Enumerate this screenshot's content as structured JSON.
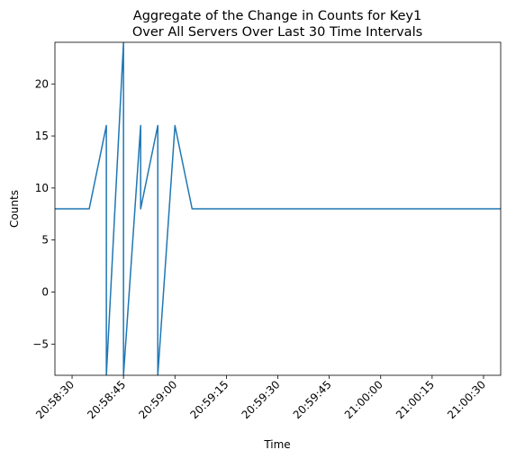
{
  "chart_data": {
    "type": "line",
    "title_lines": [
      "Aggregate of the Change in Counts for Key1",
      "Over All Servers Over Last 30 Time Intervals"
    ],
    "xlabel": "Time",
    "ylabel": "Counts",
    "x_axis_type": "time",
    "xlim": [
      "20:58:25",
      "21:00:35"
    ],
    "ylim": [
      -8,
      24
    ],
    "grid": false,
    "line_color": "#1f77b4",
    "x_ticks": [
      {
        "t": "20:58:30",
        "label": "20:58:30"
      },
      {
        "t": "20:58:45",
        "label": "20:58:45"
      },
      {
        "t": "20:59:00",
        "label": "20:59:00"
      },
      {
        "t": "20:59:15",
        "label": "20:59:15"
      },
      {
        "t": "20:59:30",
        "label": "20:59:30"
      },
      {
        "t": "20:59:45",
        "label": "20:59:45"
      },
      {
        "t": "21:00:00",
        "label": "21:00:00"
      },
      {
        "t": "21:00:15",
        "label": "21:00:15"
      },
      {
        "t": "21:00:30",
        "label": "21:00:30"
      }
    ],
    "y_ticks": [
      {
        "v": -5,
        "label": "−5"
      },
      {
        "v": 0,
        "label": "0"
      },
      {
        "v": 5,
        "label": "5"
      },
      {
        "v": 10,
        "label": "10"
      },
      {
        "v": 15,
        "label": "15"
      },
      {
        "v": 20,
        "label": "20"
      }
    ],
    "series": [
      {
        "x": [
          "20:58:25",
          "20:58:35",
          "20:58:40",
          "20:58:40",
          "20:58:45",
          "20:58:45",
          "20:58:50",
          "20:58:50",
          "20:58:55",
          "20:58:55",
          "20:59:00",
          "20:59:05",
          "21:00:35"
        ],
        "y": [
          8,
          8,
          16,
          -8,
          24,
          -8,
          16,
          8,
          16,
          -8,
          16,
          8,
          8
        ]
      }
    ]
  }
}
